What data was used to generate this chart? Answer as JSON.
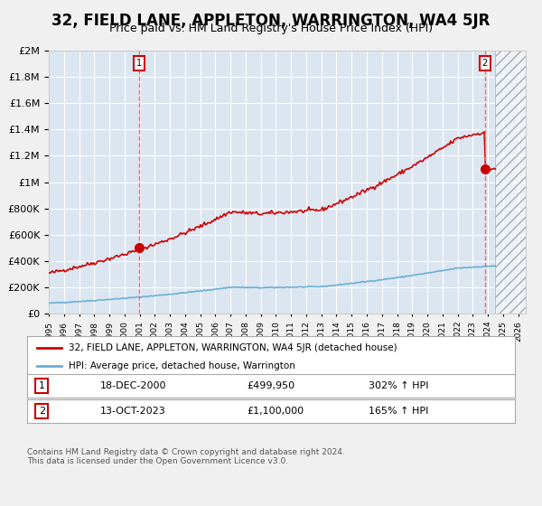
{
  "title": "32, FIELD LANE, APPLETON, WARRINGTON, WA4 5JR",
  "subtitle": "Price paid vs. HM Land Registry's House Price Index (HPI)",
  "title_fontsize": 12,
  "subtitle_fontsize": 9,
  "bg_color": "#dce6f1",
  "plot_bg_color": "#dce6f1",
  "grid_color": "#ffffff",
  "red_line_color": "#cc0000",
  "blue_line_color": "#6baed6",
  "marker_color": "#cc0000",
  "sale1_date_num": 2000.97,
  "sale1_price": 499950,
  "sale1_label": "1",
  "sale2_date_num": 2023.79,
  "sale2_price": 1100000,
  "sale2_label": "2",
  "legend_entries": [
    "32, FIELD LANE, APPLETON, WARRINGTON, WA4 5JR (detached house)",
    "HPI: Average price, detached house, Warrington"
  ],
  "table_rows": [
    [
      "1",
      "18-DEC-2000",
      "£499,950",
      "302% ↑ HPI"
    ],
    [
      "2",
      "13-OCT-2023",
      "£1,100,000",
      "165% ↑ HPI"
    ]
  ],
  "footer": "Contains HM Land Registry data © Crown copyright and database right 2024.\nThis data is licensed under the Open Government Licence v3.0.",
  "ylim": [
    0,
    2000000
  ],
  "xlim_start": 1995,
  "xlim_end": 2026.5,
  "hatch_start": 2024.5
}
